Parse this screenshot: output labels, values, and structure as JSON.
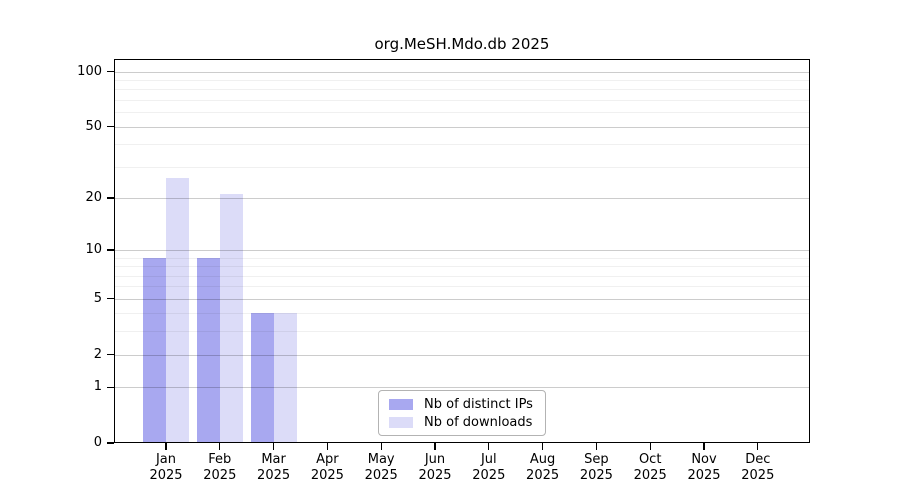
{
  "chart_data": {
    "type": "bar",
    "title": "org.MeSH.Mdo.db 2025",
    "categories": [
      "Jan",
      "Feb",
      "Mar",
      "Apr",
      "May",
      "Jun",
      "Jul",
      "Aug",
      "Sep",
      "Oct",
      "Nov",
      "Dec"
    ],
    "year": "2025",
    "series": [
      {
        "name": "Nb of distinct IPs",
        "color": "#a8a8f0",
        "values": [
          9,
          9,
          4,
          0,
          0,
          0,
          0,
          0,
          0,
          0,
          0,
          0
        ]
      },
      {
        "name": "Nb of downloads",
        "color": "#dcdcf8",
        "values": [
          26,
          21,
          4,
          0,
          0,
          0,
          0,
          0,
          0,
          0,
          0,
          0
        ]
      }
    ],
    "y_axis": {
      "scale": "log1p",
      "tick_labels": [
        "0",
        "1",
        "2",
        "5",
        "10",
        "20",
        "50",
        "100"
      ],
      "major_ticks": [
        0,
        1,
        2,
        5,
        10,
        20,
        50,
        100
      ],
      "minor_gridlines": [
        3,
        4,
        6,
        7,
        8,
        9,
        30,
        40,
        60,
        70,
        80,
        90
      ],
      "ylim": [
        0,
        117
      ]
    },
    "grid": true,
    "legend_position": "inside-bottom-center"
  },
  "colors": {
    "distinct_ips_bar": "#a8a8f0",
    "downloads_bar": "#dcdcf8",
    "spine": "#000000",
    "grid_major": "#cccccc",
    "grid_minor": "#efefef",
    "legend_border": "#b3b3b3",
    "background": "#ffffff"
  }
}
